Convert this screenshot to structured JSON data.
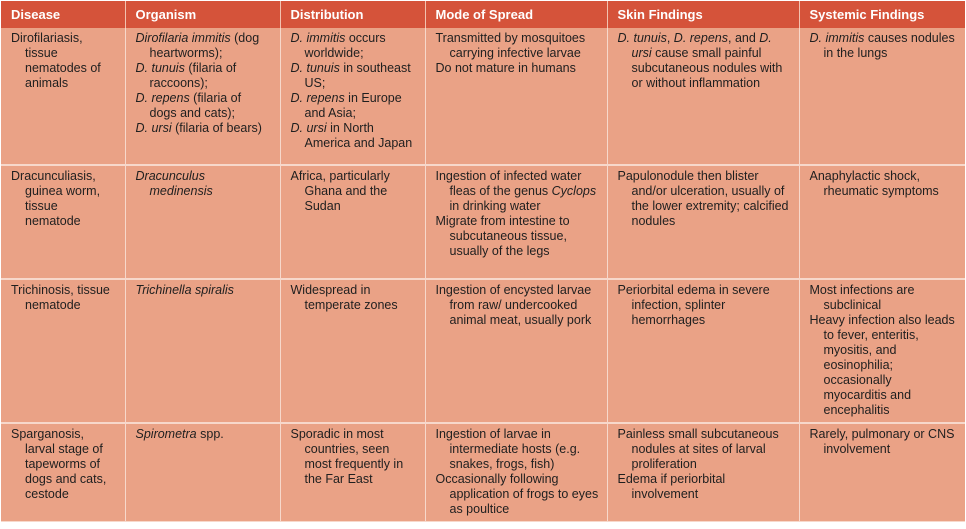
{
  "headers": [
    "Disease",
    "Organism",
    "Distribution",
    "Mode of Spread",
    "Skin Findings",
    "Systemic Findings"
  ],
  "rows": [
    {
      "disease": [
        "Dirofilariasis, tissue nematodes of animals"
      ],
      "organism": [
        [
          {
            "t": "Dirofilaria immitis",
            "i": true
          },
          {
            "t": " (dog heartworms);"
          }
        ],
        [
          {
            "t": "D. tunuis",
            "i": true
          },
          {
            "t": " (filaria of raccoons);"
          }
        ],
        [
          {
            "t": "D. repens",
            "i": true
          },
          {
            "t": " (filaria of dogs and cats);"
          }
        ],
        [
          {
            "t": "D. ursi",
            "i": true
          },
          {
            "t": " (filaria of bears)"
          }
        ]
      ],
      "distribution": [
        [
          {
            "t": "D. immitis",
            "i": true
          },
          {
            "t": " occurs worldwide;"
          }
        ],
        [
          {
            "t": "D. tunuis",
            "i": true
          },
          {
            "t": " in southeast US;"
          }
        ],
        [
          {
            "t": "D. repens",
            "i": true
          },
          {
            "t": " in Europe and Asia;"
          }
        ],
        [
          {
            "t": "D. ursi",
            "i": true
          },
          {
            "t": " in North America and Japan"
          }
        ]
      ],
      "spread": [
        [
          {
            "t": "Transmitted by mosquitoes carrying infective larvae"
          }
        ],
        [
          {
            "t": "Do not mature in humans"
          }
        ]
      ],
      "skin": [
        [
          {
            "t": "D. tunuis",
            "i": true
          },
          {
            "t": ", "
          },
          {
            "t": "D. repens",
            "i": true
          },
          {
            "t": ", and "
          },
          {
            "t": "D. ursi",
            "i": true
          },
          {
            "t": " cause small painful subcutaneous nodules with or without inflammation"
          }
        ]
      ],
      "systemic": [
        [
          {
            "t": "D. immitis",
            "i": true
          },
          {
            "t": " causes nodules in the lungs"
          }
        ]
      ]
    },
    {
      "disease": [
        "Dracunculiasis, guinea worm, tissue nematode"
      ],
      "organism": [
        [
          {
            "t": "Dracunculus medinensis",
            "i": true
          }
        ]
      ],
      "distribution": [
        [
          {
            "t": "Africa, particularly Ghana and the Sudan"
          }
        ]
      ],
      "spread": [
        [
          {
            "t": "Ingestion of infected water fleas of the genus "
          },
          {
            "t": "Cyclops",
            "i": true
          },
          {
            "t": " in drinking water"
          }
        ],
        [
          {
            "t": "Migrate from intestine to subcutaneous tissue, usually of the legs"
          }
        ]
      ],
      "skin": [
        [
          {
            "t": "Papulonodule then blister and/or ulceration, usually of the lower extremity; calcified nodules"
          }
        ]
      ],
      "systemic": [
        [
          {
            "t": "Anaphylactic shock, rheumatic symptoms"
          }
        ]
      ]
    },
    {
      "disease": [
        "Trichinosis, tissue nematode"
      ],
      "organism": [
        [
          {
            "t": "Trichinella spiralis",
            "i": true
          }
        ]
      ],
      "distribution": [
        [
          {
            "t": "Widespread in temperate zones"
          }
        ]
      ],
      "spread": [
        [
          {
            "t": "Ingestion of encysted larvae from raw/ undercooked animal meat, usually pork"
          }
        ]
      ],
      "skin": [
        [
          {
            "t": "Periorbital edema in severe infection, splinter hemorrhages"
          }
        ]
      ],
      "systemic": [
        [
          {
            "t": "Most infections are subclinical"
          }
        ],
        [
          {
            "t": "Heavy infection also leads to fever, enteritis, myositis, and eosinophilia; occasionally myocarditis and encephalitis"
          }
        ]
      ]
    },
    {
      "disease": [
        "Sparganosis, larval stage of tapeworms of dogs and cats, cestode"
      ],
      "organism": [
        [
          {
            "t": "Spirometra",
            "i": true
          },
          {
            "t": " spp."
          }
        ]
      ],
      "distribution": [
        [
          {
            "t": "Sporadic in most countries, seen most frequently in the Far East"
          }
        ]
      ],
      "spread": [
        [
          {
            "t": "Ingestion of larvae in intermediate hosts (e.g. snakes, frogs, fish)"
          }
        ],
        [
          {
            "t": "Occasionally following application of frogs to eyes as poultice"
          }
        ]
      ],
      "skin": [
        [
          {
            "t": "Painless small subcutaneous nodules at sites of larval proliferation"
          }
        ],
        [
          {
            "t": "Edema if periorbital involvement"
          }
        ]
      ],
      "systemic": [
        [
          {
            "t": "Rarely, pulmonary or CNS involvement"
          }
        ]
      ]
    }
  ]
}
